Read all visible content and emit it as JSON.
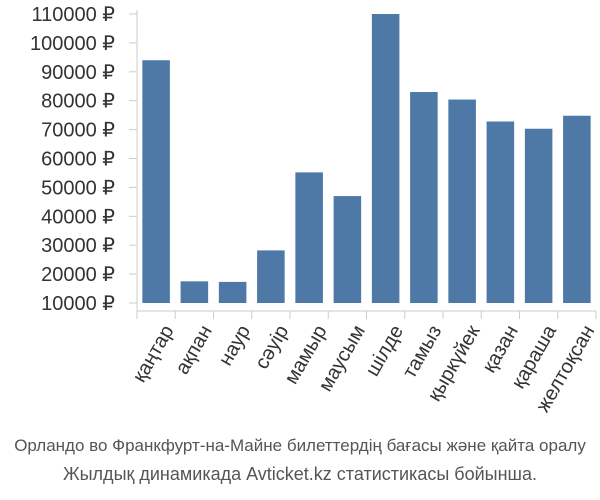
{
  "chart_data": {
    "type": "bar",
    "categories": [
      "қаңтар",
      "ақпан",
      "наур",
      "сәуір",
      "мамыр",
      "маусым",
      "шілде",
      "тамыз",
      "қыркүйек",
      "қазан",
      "қараша",
      "желтоқсан"
    ],
    "values": [
      94000,
      17500,
      17300,
      28200,
      55200,
      47000,
      110000,
      83000,
      80400,
      72800,
      70300,
      74800
    ],
    "ylim": [
      10000,
      110000
    ],
    "yticks": [
      10000,
      20000,
      30000,
      40000,
      50000,
      60000,
      70000,
      80000,
      90000,
      100000,
      110000
    ],
    "ytick_labels": [
      "10000 ₽",
      "20000 ₽",
      "30000 ₽",
      "40000 ₽",
      "50000 ₽",
      "60000 ₽",
      "70000 ₽",
      "80000 ₽",
      "90000 ₽",
      "100000 ₽",
      "110000 ₽"
    ],
    "bar_color": "#4e79a7",
    "axis_color": "#cccccc",
    "grid": false,
    "title": "",
    "xlabel": "",
    "ylabel": ""
  },
  "caption": {
    "line1": "Орландо во Франкфурт-на-Майне билеттердің бағасы және қайта оралу",
    "line2": "Жылдық динамикада Avticket.kz статистикасы бойынша."
  }
}
